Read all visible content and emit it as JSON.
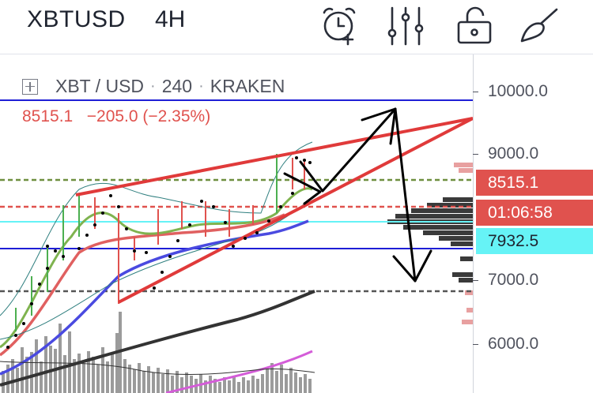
{
  "header": {
    "symbol": "XBTUSD",
    "interval": "4H",
    "tools": [
      {
        "name": "alarm-add-icon"
      },
      {
        "name": "indicators-sliders-icon"
      },
      {
        "name": "lock-icon"
      },
      {
        "name": "brush-draw-icon"
      }
    ]
  },
  "legend": {
    "pair": "XBT / USD",
    "resolution": "240",
    "exchange": "KRAKEN",
    "separator": "·",
    "last_price": "8515.1",
    "change": "−205.0 (−2.35%)"
  },
  "price_axis": {
    "ticks": [
      "10000.0",
      "9000.0",
      "7000.0",
      "6000.0"
    ],
    "last_price_tag": "8515.1",
    "countdown_tag": "01:06:58",
    "marker_tag": "7932.5"
  },
  "colors": {
    "down": "#e0524e",
    "cyan_line": "#66f3f6",
    "blue_line": "#1e1ed6",
    "accent_text": "#ffffff"
  }
}
